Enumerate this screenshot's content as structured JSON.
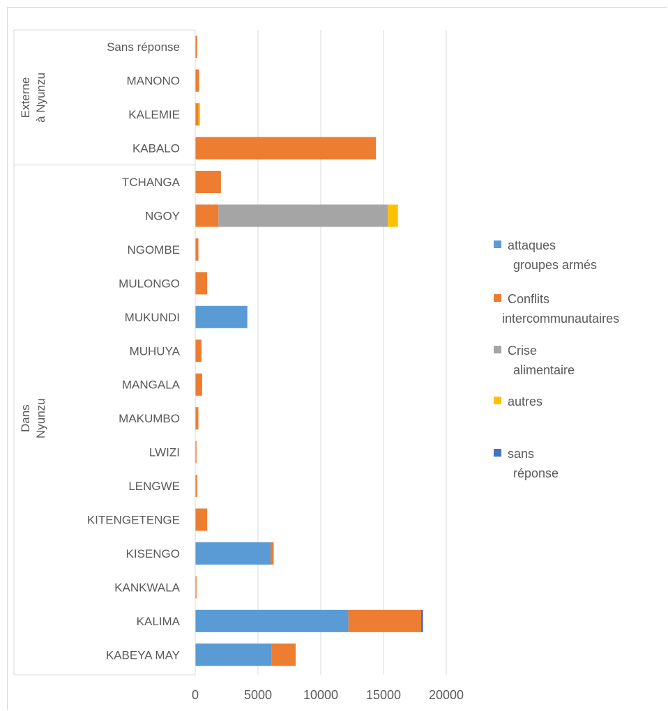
{
  "chart_data": {
    "type": "bar",
    "orientation": "horizontal",
    "stacked": true,
    "groups": [
      {
        "label_lines": [
          "Externe",
          "à Nyunzu"
        ],
        "categories": [
          "Sans réponse",
          "MANONO",
          "KALEMIE",
          "KABALO"
        ]
      },
      {
        "label_lines": [
          "Dans",
          "Nyunzu"
        ],
        "categories": [
          "TCHANGA",
          "NGOY",
          "NGOMBE",
          "MULONGO",
          "MUKUNDI",
          "MUHUYA",
          "MANGALA",
          "MAKUMBO",
          "LWIZI",
          "LENGWE",
          "KITENGETENGE",
          "KISENGO",
          "KANKWALA",
          "KALIMA",
          "KABEYA MAY"
        ]
      }
    ],
    "categories": [
      "Sans réponse",
      "MANONO",
      "KALEMIE",
      "KABALO",
      "TCHANGA",
      "NGOY",
      "NGOMBE",
      "MULONGO",
      "MUKUNDI",
      "MUHUYA",
      "MANGALA",
      "MAKUMBO",
      "LWIZI",
      "LENGWE",
      "KITENGETENGE",
      "KISENGO",
      "KANKWALA",
      "KALIMA",
      "KABEYA MAY"
    ],
    "series": [
      {
        "name_lines": [
          "attaques",
          "groupes armés"
        ],
        "color": "#5b9bd5",
        "values": [
          0,
          0,
          0,
          0,
          0,
          0,
          0,
          0,
          4150,
          0,
          0,
          0,
          0,
          0,
          0,
          6000,
          0,
          12200,
          6100
        ]
      },
      {
        "name_lines": [
          "Conflits",
          "intercommunautaires"
        ],
        "color": "#ed7d31",
        "values": [
          150,
          300,
          250,
          14400,
          2050,
          1850,
          250,
          950,
          0,
          500,
          550,
          250,
          100,
          150,
          950,
          250,
          100,
          5800,
          1900
        ]
      },
      {
        "name_lines": [
          "Crise",
          "alimentaire"
        ],
        "color": "#a5a5a5",
        "values": [
          0,
          0,
          0,
          0,
          0,
          13500,
          0,
          0,
          0,
          0,
          0,
          0,
          0,
          0,
          0,
          0,
          0,
          0,
          0
        ]
      },
      {
        "name_lines": [
          "autres"
        ],
        "color": "#ffc000",
        "values": [
          0,
          0,
          130,
          0,
          0,
          800,
          0,
          0,
          0,
          0,
          0,
          0,
          0,
          0,
          0,
          0,
          0,
          0,
          0
        ]
      },
      {
        "name_lines": [
          "sans",
          "réponse"
        ],
        "color": "#4472c4",
        "values": [
          0,
          0,
          0,
          0,
          0,
          0,
          0,
          0,
          0,
          0,
          0,
          0,
          0,
          0,
          0,
          0,
          0,
          150,
          0
        ]
      }
    ],
    "xlim": [
      0,
      20000
    ],
    "xticks": [
      0,
      5000,
      10000,
      15000,
      20000
    ],
    "grid": true,
    "legend": "right"
  }
}
